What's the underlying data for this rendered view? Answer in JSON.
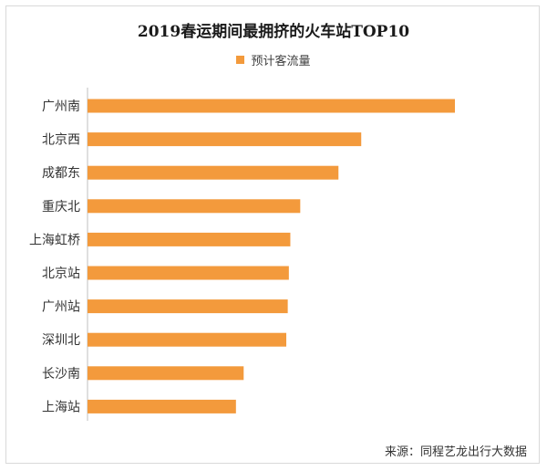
{
  "chart_data": {
    "type": "bar",
    "orientation": "horizontal",
    "title": "2019春运期间最拥挤的火车站TOP10",
    "legend": {
      "position": "top",
      "entries": [
        "预计客流量"
      ]
    },
    "series": [
      {
        "name": "预计客流量",
        "color": "#f39a3c",
        "values": [
          100,
          74.5,
          68.3,
          57.9,
          55.2,
          54.8,
          54.5,
          54.1,
          42.5,
          40.4
        ]
      }
    ],
    "categories": [
      "广州南",
      "北京西",
      "成都东",
      "重庆北",
      "上海虹桥",
      "北京站",
      "广州站",
      "深圳北",
      "长沙南",
      "上海站"
    ],
    "xlabel": "",
    "ylabel": "",
    "xlim": [
      0,
      100
    ],
    "grid": false
  },
  "source": "来源：同程艺龙出行大数据"
}
